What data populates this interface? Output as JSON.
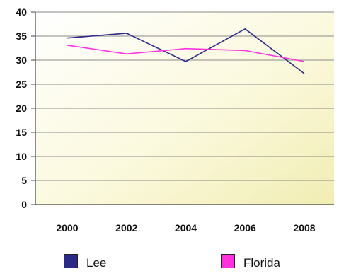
{
  "chart_data": {
    "type": "line",
    "title": "",
    "xlabel": "",
    "ylabel": "",
    "categories": [
      "2000",
      "2002",
      "2004",
      "2006",
      "2008"
    ],
    "x_ticks": [
      "2000",
      "2002",
      "2004",
      "2006",
      "2008"
    ],
    "y_ticks": [
      "0",
      "5",
      "10",
      "15",
      "20",
      "25",
      "30",
      "35",
      "40"
    ],
    "ylim": [
      0,
      40
    ],
    "grid": true,
    "legend_position": "bottom",
    "series": [
      {
        "name": "Lee",
        "color": "#2b2b86",
        "values": [
          34.6,
          35.6,
          29.7,
          36.5,
          27.2
        ]
      },
      {
        "name": "Florida",
        "color": "#ff33dd",
        "values": [
          33.1,
          31.3,
          32.4,
          32.0,
          29.7
        ]
      }
    ]
  }
}
